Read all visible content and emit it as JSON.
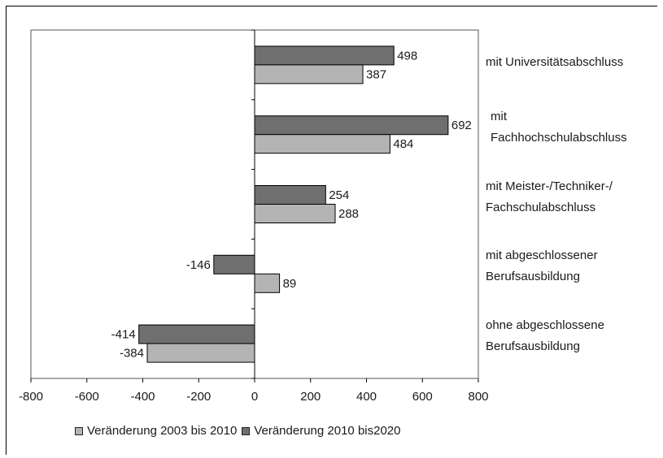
{
  "chart_data": {
    "type": "bar",
    "orientation": "horizontal",
    "categories": [
      "mit Universitätsabschluss",
      "mit\nFachhochschulabschluss",
      "mit Meister-/Techniker-/\nFachschulabschluss",
      "mit abgeschlossener\nBerufsausbildung",
      "ohne abgeschlossene\nBerufsausbildung"
    ],
    "series": [
      {
        "name": "Veränderung 2010 bis2020",
        "values": [
          498,
          692,
          254,
          -146,
          -414
        ],
        "color": "#6f6f6f"
      },
      {
        "name": "Veränderung 2003 bis 2010",
        "values": [
          387,
          484,
          288,
          89,
          -384
        ],
        "color": "#b4b4b4"
      }
    ],
    "xlim": [
      -800,
      800
    ],
    "xticks": [
      "-800",
      "-600",
      "-400",
      "-200",
      "0",
      "200",
      "400",
      "600",
      "800"
    ],
    "grid": false,
    "legend_position": "bottom",
    "legend": [
      {
        "label": "Veränderung 2003 bis 2010",
        "color": "#b4b4b4"
      },
      {
        "label": "Veränderung 2010 bis2020",
        "color": "#6f6f6f"
      }
    ],
    "title": "",
    "xlabel": "",
    "ylabel": ""
  }
}
